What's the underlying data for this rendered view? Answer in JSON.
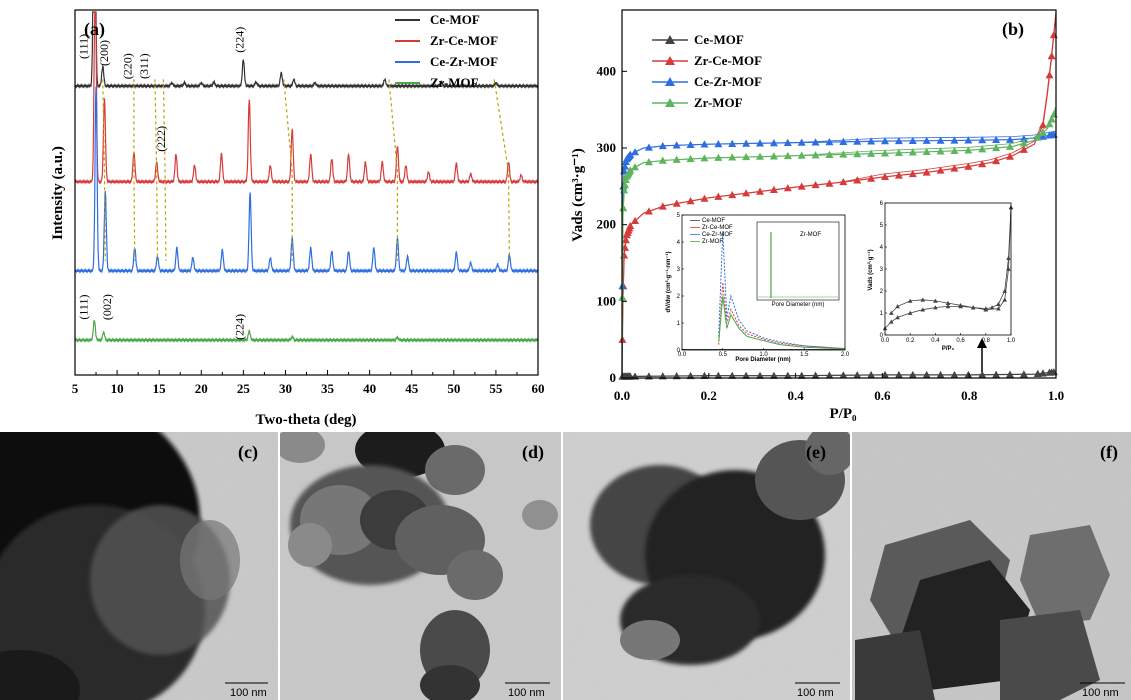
{
  "chart_data": [
    {
      "panel": "(a)",
      "type": "line",
      "xlabel": "Two-theta (deg)",
      "ylabel": "Intensity (a.u.)",
      "xlim": [
        5,
        60
      ],
      "xticks": [
        "5",
        "10",
        "15",
        "20",
        "25",
        "30",
        "35",
        "40",
        "45",
        "50",
        "55",
        "60"
      ],
      "legend": {
        "placement": "top-right",
        "entries": [
          "Ce-MOF",
          "Zr-Ce-MOF",
          "Ce-Zr-MOF",
          "Zr-MOF"
        ]
      },
      "series": [
        {
          "name": "Ce-MOF",
          "color": "#333333",
          "baseline": 4.0,
          "peaks": [
            [
              7.3,
              4.7
            ],
            [
              8.3,
              0.3
            ],
            [
              16.5,
              0.05
            ],
            [
              18.0,
              0.05
            ],
            [
              20.0,
              0.05
            ],
            [
              21.5,
              0.06
            ],
            [
              25.0,
              0.4
            ],
            [
              26.5,
              0.06
            ],
            [
              29.5,
              0.2
            ],
            [
              31.0,
              0.1
            ],
            [
              33.5,
              0.05
            ],
            [
              41.8,
              0.1
            ],
            [
              48.5,
              0.06
            ],
            [
              55.0,
              0.05
            ]
          ]
        },
        {
          "name": "Zr-Ce-MOF",
          "color": "#d63b3b",
          "baseline": 2.55,
          "peaks": [
            [
              7.4,
              3.2
            ],
            [
              8.5,
              1.25
            ],
            [
              12.0,
              0.45
            ],
            [
              14.7,
              0.3
            ],
            [
              17.0,
              0.42
            ],
            [
              19.2,
              0.25
            ],
            [
              22.4,
              0.43
            ],
            [
              25.7,
              1.25
            ],
            [
              28.2,
              0.25
            ],
            [
              30.8,
              0.8
            ],
            [
              33.0,
              0.42
            ],
            [
              35.5,
              0.35
            ],
            [
              37.5,
              0.42
            ],
            [
              39.5,
              0.3
            ],
            [
              41.5,
              0.3
            ],
            [
              43.3,
              0.55
            ],
            [
              44.3,
              0.25
            ],
            [
              47.0,
              0.15
            ],
            [
              50.3,
              0.28
            ],
            [
              52.0,
              0.12
            ],
            [
              56.5,
              0.3
            ],
            [
              58.0,
              0.1
            ]
          ]
        },
        {
          "name": "Ce-Zr-MOF",
          "color": "#2f6ee0",
          "baseline": 1.2,
          "peaks": [
            [
              7.5,
              2.8
            ],
            [
              8.6,
              1.2
            ],
            [
              12.1,
              0.35
            ],
            [
              14.8,
              0.22
            ],
            [
              17.1,
              0.35
            ],
            [
              19.0,
              0.2
            ],
            [
              22.5,
              0.32
            ],
            [
              25.8,
              1.2
            ],
            [
              28.2,
              0.2
            ],
            [
              30.8,
              0.5
            ],
            [
              33.0,
              0.35
            ],
            [
              35.5,
              0.3
            ],
            [
              37.5,
              0.3
            ],
            [
              40.5,
              0.35
            ],
            [
              43.3,
              0.5
            ],
            [
              44.5,
              0.22
            ],
            [
              50.3,
              0.28
            ],
            [
              52.0,
              0.12
            ],
            [
              55.2,
              0.1
            ],
            [
              56.6,
              0.25
            ]
          ]
        },
        {
          "name": "Zr-MOF",
          "color": "#4aa84a",
          "baseline": 0.15,
          "peaks": [
            [
              7.3,
              0.3
            ],
            [
              8.4,
              0.12
            ],
            [
              25.7,
              0.14
            ],
            [
              30.8,
              0.05
            ],
            [
              43.3,
              0.04
            ]
          ]
        }
      ],
      "annotations": [
        {
          "text": "(111)",
          "x": 6.5,
          "y": 4.6
        },
        {
          "text": "(200)",
          "x": 8.9,
          "y": 4.5
        },
        {
          "text": "(220)",
          "x": 11.7,
          "y": 4.3
        },
        {
          "text": "(311)",
          "x": 13.7,
          "y": 4.3
        },
        {
          "text": "(222)",
          "x": 15.7,
          "y": 3.2
        },
        {
          "text": "(224)",
          "x": 25.0,
          "y": 4.7
        },
        {
          "text": "(111)",
          "x": 6.5,
          "y": 0.65
        },
        {
          "text": "(002)",
          "x": 9.3,
          "y": 0.65
        },
        {
          "text": "(224)",
          "x": 25.0,
          "y": 0.35
        }
      ]
    },
    {
      "panel": "(b)",
      "type": "line",
      "xlabel": "P/P₀",
      "ylabel": "Vads (cm³·g⁻¹)",
      "xlim": [
        0,
        1.0
      ],
      "ylim": [
        0,
        480
      ],
      "xticks": [
        "0.0",
        "0.2",
        "0.4",
        "0.6",
        "0.8",
        "1.0"
      ],
      "yticks": [
        "0",
        "100",
        "200",
        "300",
        "400"
      ],
      "legend": {
        "placement": "top-left",
        "entries": [
          "Ce-MOF",
          "Zr-Ce-MOF",
          "Ce-Zr-MOF",
          "Zr-MOF"
        ]
      },
      "series": [
        {
          "name": "Ce-MOF",
          "color": "#444444",
          "x": [
            0.005,
            0.2,
            0.4,
            0.6,
            0.8,
            0.95,
            1.0
          ],
          "y": [
            2,
            3,
            3,
            4,
            4,
            5,
            8
          ]
        },
        {
          "name": "Zr-Ce-MOF",
          "color": "#d63b3b",
          "x": [
            0.0,
            0.002,
            0.005,
            0.01,
            0.02,
            0.05,
            0.1,
            0.2,
            0.3,
            0.4,
            0.5,
            0.6,
            0.7,
            0.8,
            0.85,
            0.9,
            0.95,
            0.97,
            0.98,
            0.99,
            1.0
          ],
          "y": [
            0,
            100,
            160,
            185,
            200,
            215,
            225,
            235,
            242,
            249,
            255,
            262,
            268,
            276,
            281,
            290,
            305,
            330,
            370,
            420,
            475
          ]
        },
        {
          "name": "Ce-Zr-MOF",
          "color": "#2f6ee0",
          "x": [
            0.0,
            0.002,
            0.005,
            0.01,
            0.02,
            0.05,
            0.1,
            0.2,
            0.4,
            0.6,
            0.8,
            0.9,
            0.95,
            1.0
          ],
          "y": [
            0,
            240,
            270,
            285,
            292,
            300,
            303,
            305,
            307,
            309,
            310,
            311,
            313,
            318
          ]
        },
        {
          "name": "Zr-MOF",
          "color": "#5fb55f",
          "x": [
            0.0,
            0.002,
            0.005,
            0.01,
            0.02,
            0.05,
            0.1,
            0.2,
            0.4,
            0.6,
            0.8,
            0.9,
            0.95,
            0.98,
            1.0
          ],
          "y": [
            0,
            210,
            245,
            262,
            272,
            281,
            284,
            287,
            290,
            293,
            297,
            302,
            310,
            325,
            350
          ]
        }
      ],
      "inset_left": {
        "xlabel": "Pore Diameter (nm)",
        "ylabel": "dV/dw (cm³·g⁻¹·nm⁻¹)",
        "xlim": [
          0,
          2.0
        ],
        "ylim": [
          0,
          5
        ],
        "xticks": [
          "0.0",
          "0.5",
          "1.0",
          "1.5",
          "2.0"
        ],
        "yticks": [
          "0",
          "1",
          "2",
          "3",
          "4",
          "5"
        ],
        "legend": [
          "Ce-MOF",
          "Zr-Ce-MOF",
          "Ce-Zr-MOF",
          "Zr-MOF"
        ],
        "series": [
          {
            "name": "Ce-MOF",
            "color": "#444444",
            "x": [
              0.0,
              2.0
            ],
            "y": [
              0.02,
              0.02
            ]
          },
          {
            "name": "Zr-Ce-MOF",
            "color": "#d63b3b",
            "x": [
              0.45,
              0.5,
              0.55,
              0.6,
              0.7,
              0.8,
              1.0,
              1.2,
              1.5,
              2.0
            ],
            "y": [
              0.2,
              2.5,
              1.0,
              1.5,
              0.9,
              0.6,
              0.4,
              0.25,
              0.15,
              0.05
            ]
          },
          {
            "name": "Ce-Zr-MOF",
            "color": "#2f6ee0",
            "x": [
              0.45,
              0.5,
              0.55,
              0.6,
              0.7,
              0.8,
              1.0,
              1.2,
              1.5,
              2.0
            ],
            "y": [
              0.5,
              4.4,
              1.2,
              2.0,
              1.1,
              0.7,
              0.45,
              0.3,
              0.15,
              0.05
            ]
          },
          {
            "name": "Zr-MOF",
            "color": "#4aa84a",
            "x": [
              0.45,
              0.5,
              0.55,
              0.6,
              0.7,
              0.8,
              1.0,
              1.2,
              1.5,
              2.0
            ],
            "y": [
              0.3,
              2.0,
              0.8,
              1.3,
              0.8,
              0.5,
              0.35,
              0.2,
              0.1,
              0.04
            ]
          }
        ],
        "sub_inset": {
          "legend": "Zr-MOF",
          "xlabel": "Pore Diameter (nm)"
        }
      },
      "inset_right": {
        "xlabel": "P/P₀",
        "ylabel": "Vads (cm³·g⁻¹)",
        "xlim": [
          0,
          1.0
        ],
        "ylim": [
          0,
          6
        ],
        "xticks": [
          "0.0",
          "0.2",
          "0.4",
          "0.6",
          "0.8",
          "1.0"
        ],
        "yticks": [
          "0",
          "1",
          "2",
          "3",
          "4",
          "5",
          "6"
        ],
        "adsorption": {
          "x": [
            0.0,
            0.05,
            0.1,
            0.2,
            0.3,
            0.4,
            0.5,
            0.6,
            0.7,
            0.8,
            0.85,
            0.9,
            0.95,
            0.98,
            1.0
          ],
          "y": [
            0.3,
            0.6,
            0.8,
            1.0,
            1.15,
            1.25,
            1.3,
            1.3,
            1.25,
            1.2,
            1.25,
            1.4,
            2.0,
            3.5,
            5.8
          ]
        },
        "desorption": {
          "x": [
            1.0,
            0.98,
            0.95,
            0.9,
            0.8,
            0.7,
            0.6,
            0.5,
            0.4,
            0.3,
            0.2,
            0.1,
            0.05
          ],
          "y": [
            5.8,
            3.0,
            1.6,
            1.2,
            1.15,
            1.25,
            1.35,
            1.45,
            1.55,
            1.6,
            1.55,
            1.3,
            1.0
          ]
        }
      }
    }
  ],
  "tem_panels": [
    {
      "letter": "(c)",
      "scale": "100 nm"
    },
    {
      "letter": "(d)",
      "scale": "100 nm"
    },
    {
      "letter": "(e)",
      "scale": "100 nm"
    },
    {
      "letter": "(f)",
      "scale": "100 nm"
    }
  ]
}
